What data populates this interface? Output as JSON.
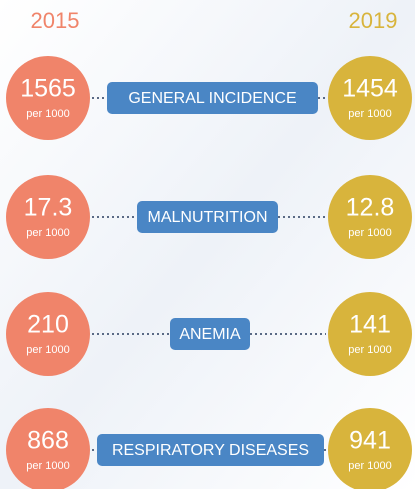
{
  "header": {
    "left_year": "2015",
    "right_year": "2019"
  },
  "rows": [
    {
      "label": "GENERAL INCIDENCE",
      "left": {
        "value": 1565,
        "unit": "per 1000"
      },
      "right": {
        "value": 1454,
        "unit": "per 1000"
      }
    },
    {
      "label": "MALNUTRITION",
      "left": {
        "value": 17.3,
        "unit": "per 1000"
      },
      "right": {
        "value": 12.8,
        "unit": "per 1000"
      }
    },
    {
      "label": "ANEMIA",
      "left": {
        "value": 210,
        "unit": "per 1000"
      },
      "right": {
        "value": 141,
        "unit": "per 1000"
      }
    },
    {
      "label": "RESPIRATORY DISEASES",
      "left": {
        "value": 868,
        "unit": "per 1000"
      },
      "right": {
        "value": 941,
        "unit": "per 1000"
      }
    }
  ]
}
